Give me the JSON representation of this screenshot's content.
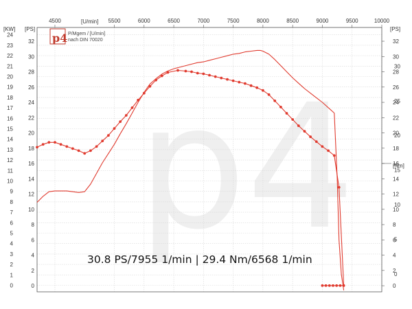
{
  "chart_data": {
    "type": "line",
    "title": "",
    "legend_lines": [
      "P/Mgem / [U/min]",
      "nach DIN 70020"
    ],
    "logo_text": "p4",
    "watermark_text": "p4",
    "annotation": "30.8 PS/7955 1/min | 29.4 Nm/6568 1/min",
    "x_unit_label": "[U/min]",
    "x_ticks": [
      "4500",
      "5500",
      "6000",
      "6500",
      "7000",
      "7500",
      "8000",
      "8500",
      "9000",
      "9500",
      "10000"
    ],
    "xlim": [
      4200,
      10000
    ],
    "left_kw_label": "[KW]",
    "left_ps_label": "[PS]",
    "kw_ticks": [
      "0",
      "1",
      "2",
      "3",
      "4",
      "5",
      "6",
      "7",
      "8",
      "9",
      "10",
      "11",
      "12",
      "13",
      "14",
      "15",
      "16",
      "17",
      "18",
      "19",
      "20",
      "21",
      "22",
      "23",
      "24"
    ],
    "ps_ticks": [
      "0",
      "2",
      "4",
      "6",
      "8",
      "10",
      "12",
      "14",
      "16",
      "18",
      "20",
      "22",
      "24",
      "26",
      "28",
      "30",
      "32"
    ],
    "right_ps_label": "[PS]",
    "right_ps_ticks": [
      "0",
      "2",
      "4",
      "6",
      "8",
      "10",
      "12",
      "14",
      "16",
      "18",
      "20",
      "22",
      "24",
      "26",
      "28",
      "30",
      "32"
    ],
    "right_nm_label": "[Nm]",
    "nm_ticks": [
      "0",
      "5",
      "10",
      "15",
      "20",
      "25",
      "30"
    ],
    "ylim_ps": [
      -0.8,
      33.8
    ],
    "ylim_nm": [
      -2.6,
      35.6
    ],
    "grid": true,
    "series": [
      {
        "axis": "ps",
        "color": "#e03a2e",
        "x": [
          4200,
          4300,
          4400,
          4500,
          4600,
          4700,
          4800,
          4900,
          5000,
          5100,
          5200,
          5300,
          5400,
          5500,
          5600,
          5700,
          5800,
          5900,
          6000,
          6100,
          6200,
          6300,
          6400,
          6500,
          6600,
          6700,
          6800,
          6900,
          7000,
          7100,
          7200,
          7300,
          7400,
          7500,
          7600,
          7700,
          7800,
          7900,
          7955,
          8000,
          8100,
          8200,
          8300,
          8400,
          8500,
          8600,
          8700,
          8800,
          8900,
          9000,
          9100,
          9200,
          9250,
          9280,
          9320,
          9360
        ],
        "y": [
          10.9,
          11.7,
          12.3,
          12.4,
          12.4,
          12.4,
          12.3,
          12.2,
          12.3,
          13.3,
          14.7,
          16.1,
          17.3,
          18.5,
          19.9,
          21.2,
          22.6,
          24.0,
          25.3,
          26.4,
          27.1,
          27.7,
          28.1,
          28.4,
          28.6,
          28.8,
          29.0,
          29.2,
          29.3,
          29.5,
          29.7,
          29.9,
          30.1,
          30.3,
          30.4,
          30.6,
          30.7,
          30.8,
          30.8,
          30.7,
          30.3,
          29.6,
          28.8,
          28.0,
          27.2,
          26.5,
          25.8,
          25.2,
          24.6,
          24.0,
          23.3,
          22.6,
          14.0,
          6.0,
          1.5,
          -0.6
        ]
      },
      {
        "axis": "nm",
        "color": "#e03a2e",
        "marker": "circle",
        "x": [
          4200,
          4300,
          4400,
          4500,
          4600,
          4700,
          4800,
          4900,
          5000,
          5100,
          5200,
          5300,
          5400,
          5500,
          5600,
          5700,
          5800,
          5900,
          6000,
          6100,
          6200,
          6300,
          6400,
          6568,
          6700,
          6800,
          6900,
          7000,
          7100,
          7200,
          7300,
          7400,
          7500,
          7600,
          7700,
          7800,
          7900,
          8000,
          8100,
          8200,
          8300,
          8400,
          8500,
          8600,
          8700,
          8800,
          8900,
          9000,
          9100,
          9200,
          9280,
          9360
        ],
        "y": [
          18.3,
          18.7,
          19.0,
          19.0,
          18.7,
          18.4,
          18.1,
          17.8,
          17.4,
          17.8,
          18.4,
          19.2,
          20.0,
          21.0,
          22.0,
          22.9,
          24.0,
          25.1,
          26.1,
          27.1,
          28.0,
          28.6,
          29.1,
          29.4,
          29.3,
          29.2,
          29.0,
          28.9,
          28.7,
          28.5,
          28.3,
          28.1,
          27.9,
          27.7,
          27.5,
          27.2,
          26.9,
          26.5,
          25.9,
          25.0,
          24.1,
          23.2,
          22.3,
          21.4,
          20.6,
          19.8,
          19.1,
          18.4,
          17.8,
          17.1,
          12.5,
          -1.7
        ]
      },
      {
        "axis": "nm",
        "color": "#e03a2e",
        "marker": "circle",
        "x": [
          9000,
          9060,
          9120,
          9180,
          9240,
          9300,
          9360
        ],
        "y": [
          -1.7,
          -1.7,
          -1.7,
          -1.7,
          -1.7,
          -1.7,
          -1.7
        ]
      }
    ]
  }
}
